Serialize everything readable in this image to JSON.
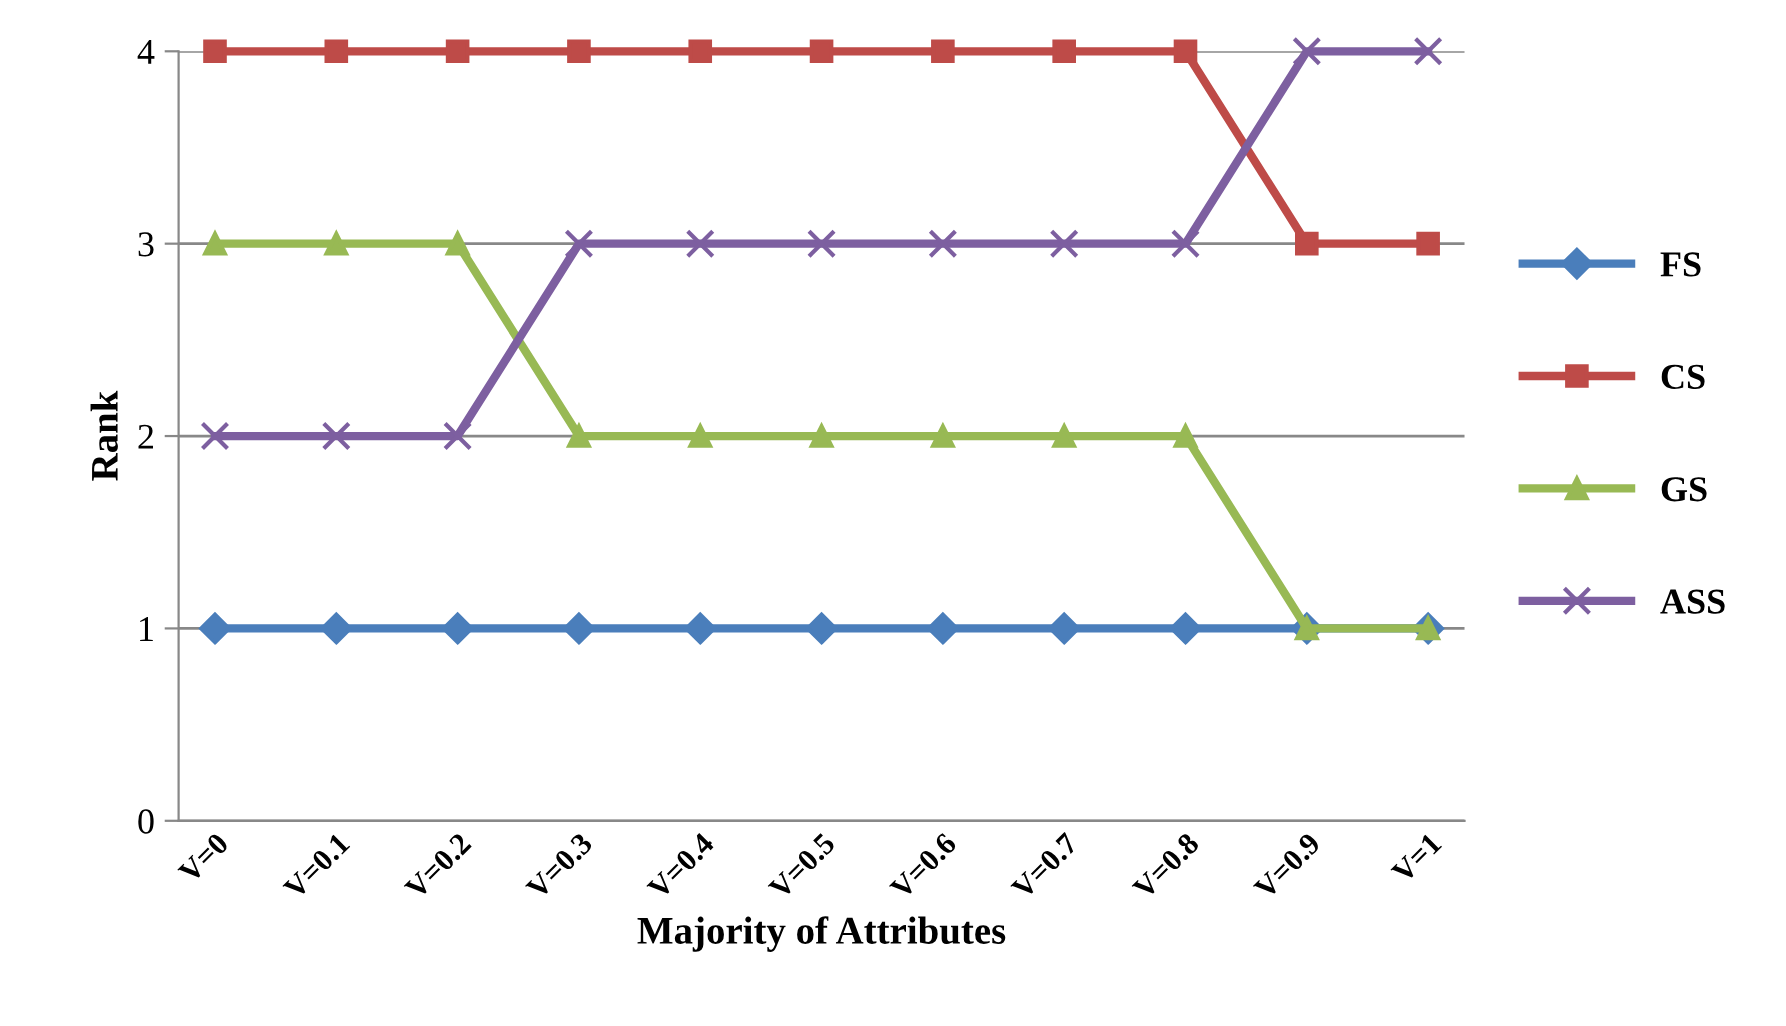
{
  "chart_data": {
    "type": "line",
    "xlabel": "Majority of Attributes",
    "ylabel": "Rank",
    "categories": [
      "V=0",
      "V=0.1",
      "V=0.2",
      "V=0.3",
      "V=0.4",
      "V=0.5",
      "V=0.6",
      "V=0.7",
      "V=0.8",
      "V=0.9",
      "V=1"
    ],
    "series": [
      {
        "name": "FS",
        "color": "#4a7ebb",
        "marker": "diamond",
        "values": [
          1,
          1,
          1,
          1,
          1,
          1,
          1,
          1,
          1,
          1,
          1
        ]
      },
      {
        "name": "CS",
        "color": "#be4b48",
        "marker": "square",
        "values": [
          4,
          4,
          4,
          4,
          4,
          4,
          4,
          4,
          4,
          3,
          3
        ]
      },
      {
        "name": "GS",
        "color": "#98b954",
        "marker": "triangle",
        "values": [
          3,
          3,
          3,
          2,
          2,
          2,
          2,
          2,
          2,
          1,
          1
        ]
      },
      {
        "name": "ASS",
        "color": "#7d5fa0",
        "marker": "cross",
        "values": [
          2,
          2,
          2,
          3,
          3,
          3,
          3,
          3,
          3,
          4,
          4
        ]
      }
    ],
    "ylim": [
      0,
      4
    ],
    "yticks": [
      0,
      1,
      2,
      3,
      4
    ],
    "grid": "y",
    "legend": "right",
    "line_style": "solid"
  }
}
